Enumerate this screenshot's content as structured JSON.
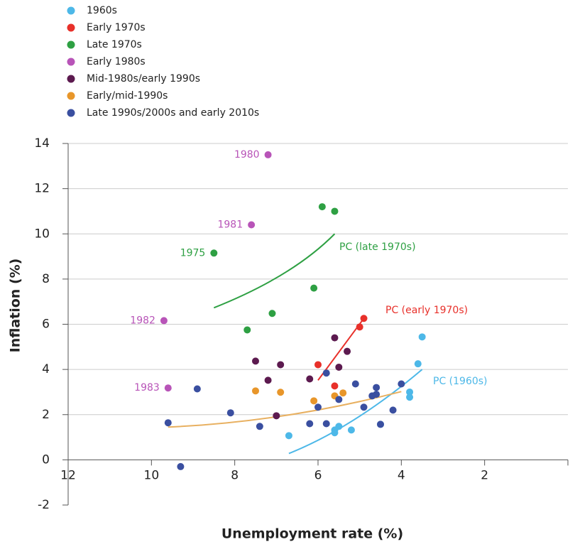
{
  "chart_data": {
    "type": "scatter",
    "xlabel": "Unemployment rate (%)",
    "ylabel": "Inflation (%)",
    "xlim": [
      12,
      0
    ],
    "ylim": [
      -2,
      14
    ],
    "xticks": [
      12,
      10,
      8,
      6,
      4,
      2
    ],
    "yticks": [
      -2,
      0,
      2,
      4,
      6,
      8,
      10,
      12,
      14
    ],
    "grid": true,
    "series": [
      {
        "name": "1960s",
        "color": "#4db8e8",
        "x": [
          3.5,
          3.6,
          3.8,
          3.8,
          4.5,
          5.2,
          5.5,
          5.6,
          5.6,
          6.7
        ],
        "y": [
          5.44,
          4.25,
          3.0,
          2.77,
          1.57,
          1.32,
          1.48,
          1.32,
          1.2,
          1.07
        ]
      },
      {
        "name": "Early 1970s",
        "color": "#e8302a",
        "x": [
          4.9,
          5.0,
          5.6,
          6.0
        ],
        "y": [
          6.26,
          5.88,
          3.27,
          4.21
        ]
      },
      {
        "name": "Late 1970s",
        "color": "#2ea043",
        "x": [
          5.9,
          5.6,
          8.5,
          6.1,
          7.1,
          7.7
        ],
        "y": [
          11.2,
          11.0,
          9.15,
          7.6,
          6.48,
          5.75
        ],
        "labels": [
          null,
          null,
          "1975",
          null,
          null,
          null
        ]
      },
      {
        "name": "Early 1980s",
        "color": "#b854b8",
        "x": [
          7.2,
          7.6,
          9.7,
          9.6
        ],
        "y": [
          13.5,
          10.4,
          6.16,
          3.18
        ],
        "labels": [
          "1980",
          "1981",
          "1982",
          "1983"
        ]
      },
      {
        "name": "Mid-1980s/early 1990s",
        "color": "#5c1a4f",
        "x": [
          5.6,
          5.3,
          5.5,
          7.5,
          6.9,
          7.2,
          6.2,
          7.0
        ],
        "y": [
          5.4,
          4.8,
          4.1,
          4.37,
          4.21,
          3.52,
          3.58,
          1.95
        ]
      },
      {
        "name": "Early/mid-1990s",
        "color": "#e8962a",
        "x": [
          7.5,
          6.9,
          5.6,
          5.4,
          6.1
        ],
        "y": [
          3.05,
          2.99,
          2.83,
          2.96,
          2.61
        ]
      },
      {
        "name": "Late 1990s/2000s and early 2010s",
        "color": "#3a4fa0",
        "x": [
          5.8,
          5.1,
          4.6,
          4.0,
          4.7,
          4.6,
          5.5,
          6.0,
          4.9,
          4.2,
          8.9,
          8.1,
          9.6,
          7.4,
          6.2,
          5.8,
          4.5,
          9.3
        ],
        "y": [
          3.84,
          3.36,
          3.2,
          3.36,
          2.83,
          2.9,
          2.67,
          2.33,
          2.33,
          2.2,
          3.14,
          2.08,
          1.64,
          1.48,
          1.6,
          1.6,
          1.57,
          -0.3
        ]
      }
    ],
    "curves": [
      {
        "name": "PC (late 1970s)",
        "color": "#2ea043",
        "x": [
          8.5,
          6.83,
          5.6
        ],
        "y": [
          6.73,
          8.24,
          10.0
        ]
      },
      {
        "name": "PC (early 1970s)",
        "color": "#e8302a",
        "x": [
          6.0,
          4.9
        ],
        "y": [
          3.52,
          6.26
        ]
      },
      {
        "name": "PC (1960s)",
        "color": "#4db8e8",
        "x": [
          6.7,
          5.12,
          3.5
        ],
        "y": [
          0.28,
          1.79,
          4.0
        ]
      },
      {
        "color": "#e8b060",
        "x": [
          9.6,
          6.83,
          4.0
        ],
        "y": [
          1.45,
          1.95,
          3.02
        ]
      }
    ]
  }
}
